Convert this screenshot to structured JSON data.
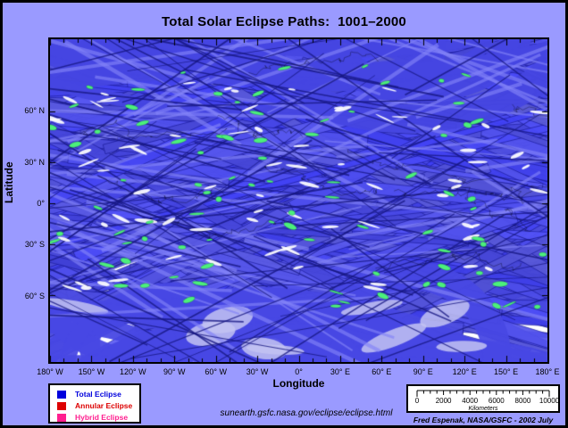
{
  "title": "Total Solar Eclipse Paths:  1001–2000",
  "map": {
    "x_axis": {
      "label": "Longitude",
      "ticks": [
        "180° W",
        "150° W",
        "120° W",
        "90° W",
        "60° W",
        "30° W",
        "0°",
        "30° E",
        "60° E",
        "90° E",
        "120° E",
        "150° E",
        "180° E"
      ]
    },
    "y_axis": {
      "label": "Latitude",
      "ticks": [
        "60° N",
        "30° N",
        "0°",
        "30° S",
        "60° S"
      ]
    },
    "colors": {
      "figure_background": "#9a9aff",
      "ocean_background": "#ffffff",
      "total_path_fill": "#4646e0",
      "path_edge": "#1c1c96",
      "pale_patch": "#c3c3f2",
      "green_spot": "#4cf07c",
      "coastline": "#101028"
    }
  },
  "legend": {
    "items": [
      {
        "label": "Total Eclipse",
        "color": "#0000dd"
      },
      {
        "label": "Annular Eclipse",
        "color": "#dd0000"
      },
      {
        "label": "Hybrid Eclipse",
        "color": "#ff1f8f"
      }
    ]
  },
  "scalebar": {
    "labels": [
      "0",
      "2000",
      "4000",
      "6000",
      "8000",
      "10000"
    ],
    "unit": "Kilometers"
  },
  "footer": {
    "url": "sunearth.gsfc.nasa.gov/eclipse/eclipse.html",
    "credit": "Fred Espenak, NASA/GSFC - 2002 July"
  }
}
